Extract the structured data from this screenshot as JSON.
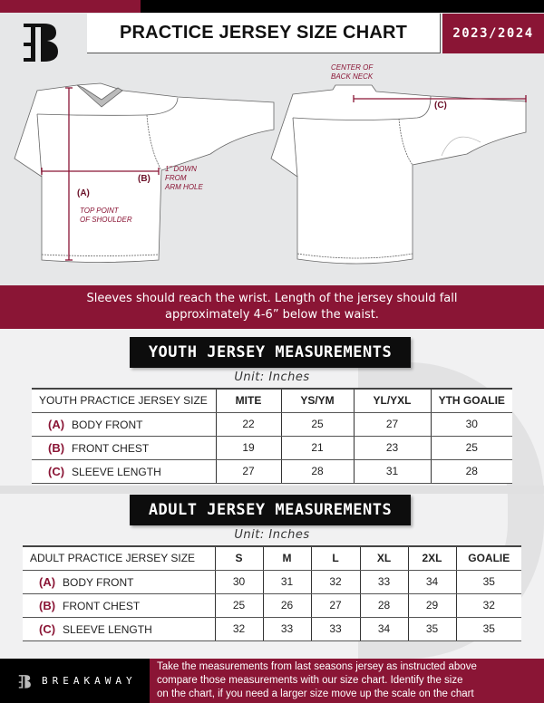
{
  "header": {
    "title": "PRACTICE JERSEY SIZE CHART",
    "season": "2023/2024",
    "logo_letter": "B"
  },
  "diagram": {
    "front": {
      "mark_a": "(A)",
      "note_a": [
        "TOP POINT",
        "OF SHOULDER"
      ],
      "mark_b": "(B)",
      "note_b": [
        "1\" DOWN",
        "FROM",
        "ARM HOLE"
      ]
    },
    "back": {
      "note_c": [
        "CENTER OF",
        "BACK NECK"
      ],
      "mark_c": "(C)"
    }
  },
  "band_text": [
    "Sleeves should reach the wrist. Length of the jersey should fall",
    "approximately 4-6” below the waist."
  ],
  "youth": {
    "title": "YOUTH JERSEY MEASUREMENTS",
    "unit": "Unit: Inches",
    "header": [
      "YOUTH PRACTICE JERSEY SIZE",
      "MITE",
      "YS/YM",
      "YL/YXL",
      "YTH GOALIE"
    ],
    "rows": [
      {
        "mark": "(A)",
        "label": "BODY FRONT",
        "values": [
          "22",
          "25",
          "27",
          "30"
        ]
      },
      {
        "mark": "(B)",
        "label": "FRONT CHEST",
        "values": [
          "19",
          "21",
          "23",
          "25"
        ]
      },
      {
        "mark": "(C)",
        "label": "SLEEVE LENGTH",
        "values": [
          "27",
          "28",
          "31",
          "28"
        ]
      }
    ]
  },
  "adult": {
    "title": "ADULT JERSEY MEASUREMENTS",
    "unit": "Unit: Inches",
    "header": [
      "ADULT PRACTICE JERSEY SIZE",
      "S",
      "M",
      "L",
      "XL",
      "2XL",
      "GOALIE"
    ],
    "rows": [
      {
        "mark": "(A)",
        "label": "BODY FRONT",
        "values": [
          "30",
          "31",
          "32",
          "33",
          "34",
          "35"
        ]
      },
      {
        "mark": "(B)",
        "label": "FRONT CHEST",
        "values": [
          "25",
          "26",
          "27",
          "28",
          "29",
          "32"
        ]
      },
      {
        "mark": "(C)",
        "label": "SLEEVE LENGTH",
        "values": [
          "32",
          "33",
          "33",
          "34",
          "35",
          "35"
        ]
      }
    ]
  },
  "footer": {
    "brand": "BREAKAWAY",
    "text": [
      "Take the measurements from last seasons jersey as instructed above",
      "compare those measurements  with our size chart. Identify the size",
      "on the chart, if you need a larger size move up the scale on the chart"
    ]
  },
  "colors": {
    "accent": "#8a1535",
    "dark": "#0d0d0d",
    "background": "#e6e7e8"
  }
}
